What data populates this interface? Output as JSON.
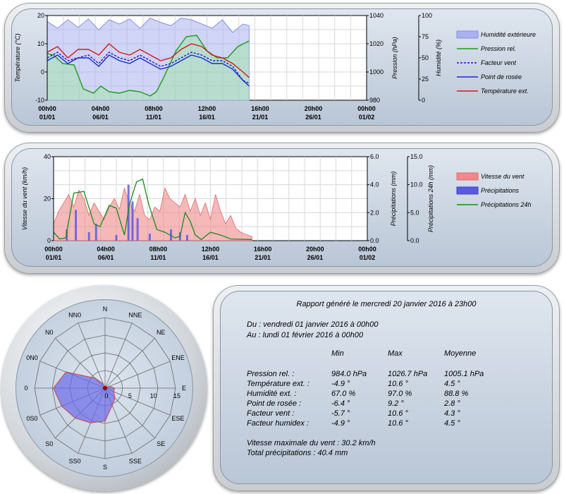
{
  "colors": {
    "humidity": "#aab0f0",
    "pressure": "#1a9a1a",
    "windchill": "#1515d0",
    "dewpoint": "#1a2ad0",
    "temperature": "#d01a1a",
    "windspeed": "#f08a8a",
    "rain": "#5a5ae0",
    "rain24": "#1a8a1a"
  },
  "x_ticks": [
    {
      "time": "00h00",
      "date": "01/01"
    },
    {
      "time": "04h00",
      "date": "06/01"
    },
    {
      "time": "08h00",
      "date": "11/01"
    },
    {
      "time": "12h00",
      "date": "16/01"
    },
    {
      "time": "16h00",
      "date": "21/01"
    },
    {
      "time": "20h00",
      "date": "26/01"
    },
    {
      "time": "00h00",
      "date": "01/02"
    }
  ],
  "chart_data": [
    {
      "type": "line",
      "x_range": [
        "2016-01-01",
        "2016-02-01"
      ],
      "axes": {
        "temperature": {
          "label": "Température (°C)",
          "ylim": [
            -10,
            20
          ],
          "ticks": [
            "20",
            "10",
            "0",
            "-10"
          ]
        },
        "pressure": {
          "label": "Pression (hPa)",
          "ylim": [
            980,
            1040
          ],
          "ticks": [
            "1040",
            "1020",
            "1000",
            "980"
          ]
        },
        "humidity": {
          "label": "Humidité (%)",
          "ylim": [
            0,
            100
          ],
          "ticks": [
            "100",
            "75",
            "50",
            "25",
            "0"
          ]
        }
      },
      "legend": [
        "Humidité extérieure",
        "Pression rel.",
        "Facteur vent",
        "Point de rosée",
        "Température ext."
      ],
      "series": [
        {
          "name": "Humidité extérieure",
          "axis": "humidity",
          "x": [
            1,
            2,
            3,
            4,
            5,
            6,
            7,
            8,
            9,
            10,
            11,
            12,
            13,
            14,
            15,
            16,
            17,
            18,
            19,
            20,
            20.6
          ],
          "values": [
            93,
            85,
            95,
            86,
            96,
            83,
            95,
            90,
            96,
            85,
            97,
            92,
            88,
            97,
            95,
            90,
            85,
            95,
            80,
            90,
            88
          ]
        },
        {
          "name": "Pression rel.",
          "axis": "pressure",
          "x": [
            1,
            1.6,
            2.5,
            3.6,
            4.5,
            5.5,
            6.2,
            7,
            8,
            9,
            10,
            11,
            11.6,
            12.3,
            13.5,
            14.5,
            15.5,
            16.5,
            17.5,
            18.5,
            19.5,
            20.6
          ],
          "values": [
            1013,
            1012,
            1006,
            1005,
            988,
            985,
            990,
            986,
            985,
            987,
            986,
            983,
            986,
            996,
            1015,
            1025,
            1026,
            1015,
            1010,
            1010,
            1018,
            1022
          ]
        },
        {
          "name": "Facteur vent",
          "axis": "temperature",
          "x": [
            1,
            2,
            3,
            4,
            5,
            6,
            7,
            8,
            9,
            10,
            11,
            12,
            13,
            14,
            15,
            16,
            17,
            18,
            19,
            20,
            20.6
          ],
          "values": [
            5,
            7,
            4,
            5,
            6,
            3,
            7,
            5,
            4,
            6,
            4,
            2,
            3,
            5,
            7,
            6,
            4,
            4,
            2,
            -3,
            -4
          ]
        },
        {
          "name": "Point de rosée",
          "axis": "temperature",
          "x": [
            1,
            2,
            3,
            4,
            5,
            6,
            7,
            8,
            9,
            10,
            11,
            12,
            13,
            14,
            15,
            16,
            17,
            18,
            19,
            20,
            20.6
          ],
          "values": [
            4,
            6,
            3,
            5,
            5,
            2,
            6,
            4,
            3,
            5,
            3,
            1,
            2,
            4,
            6,
            5,
            3,
            3,
            1,
            -3,
            -5
          ]
        },
        {
          "name": "Température ext.",
          "axis": "temperature",
          "x": [
            1,
            2,
            3,
            4,
            5,
            6,
            7,
            8,
            9,
            10,
            11,
            12,
            13,
            14,
            15,
            16,
            17,
            18,
            19,
            20,
            20.6
          ],
          "values": [
            7,
            9,
            5,
            8,
            8,
            6,
            10,
            7,
            6,
            8,
            6,
            4,
            5,
            8,
            10,
            9,
            6,
            5,
            3,
            0,
            -2
          ]
        }
      ]
    },
    {
      "type": "area",
      "x_range": [
        "2016-01-01",
        "2016-02-01"
      ],
      "axes": {
        "wind": {
          "label": "Vitesse du vent (km/h)",
          "ylim": [
            0,
            40
          ],
          "ticks": [
            "40",
            "20",
            "0"
          ]
        },
        "rain": {
          "label": "Précipitations (mm)",
          "ylim": [
            0,
            6
          ],
          "ticks": [
            "6.0",
            "4.0",
            "2.0",
            "0.0"
          ]
        },
        "rain24": {
          "label": "Précipitations 24h (mm)",
          "ylim": [
            0,
            15
          ],
          "ticks": [
            "15.0",
            "10.0",
            "5.0",
            "0.0"
          ]
        }
      },
      "legend": [
        "Vitesse du vent",
        "Précipitations",
        "Précipitations 24h"
      ],
      "series": [
        {
          "name": "Vitesse du vent",
          "axis": "wind",
          "x": [
            1,
            1.5,
            2,
            2.5,
            3,
            3.5,
            4,
            4.5,
            5,
            5.5,
            6,
            6.5,
            7,
            7.5,
            8,
            8.5,
            9,
            9.5,
            10,
            10.5,
            11,
            11.5,
            12,
            12.5,
            13,
            13.5,
            14,
            14.5,
            15,
            15.5,
            16,
            16.5,
            17,
            17.5,
            18,
            18.5,
            19,
            19.5,
            20,
            20.6
          ],
          "values": [
            8,
            14,
            18,
            22,
            16,
            24,
            20,
            12,
            18,
            14,
            10,
            16,
            20,
            15,
            25,
            18,
            14,
            22,
            12,
            10,
            16,
            14,
            25,
            20,
            18,
            16,
            22,
            14,
            20,
            12,
            18,
            10,
            22,
            14,
            8,
            12,
            6,
            4,
            3,
            2
          ]
        },
        {
          "name": "Précipitations",
          "axis": "rain",
          "x": [
            2.3,
            3.2,
            4.5,
            5.2,
            7.2,
            8.4,
            8.8,
            9.3,
            10.5,
            12.6,
            13.5,
            14.2
          ],
          "values": [
            0.8,
            2.2,
            0.6,
            1.2,
            0.4,
            4.0,
            2.8,
            1.6,
            0.5,
            0.8,
            0.6,
            0.4
          ]
        },
        {
          "name": "Précipitations 24h",
          "axis": "rain24",
          "x": [
            1,
            1.6,
            2.2,
            3,
            4,
            5,
            5.6,
            6.5,
            7.2,
            8,
            8.5,
            9.2,
            9.8,
            10.4,
            11.2,
            12,
            13,
            13.5,
            14,
            14.5,
            15,
            15.6,
            16.5,
            17.5,
            18.5,
            20.6
          ],
          "values": [
            1.5,
            0.3,
            0.5,
            8.5,
            8.8,
            3.0,
            2.5,
            6.3,
            5.8,
            1.0,
            6.5,
            10.5,
            11.0,
            6.5,
            2.0,
            1.5,
            0.5,
            0.8,
            5.0,
            3.5,
            1.0,
            0.2,
            1.5,
            1.0,
            0.3,
            0.2
          ]
        }
      ]
    },
    {
      "type": "radar",
      "directions": [
        "N",
        "NNE",
        "NE",
        "ENE",
        "E",
        "ESE",
        "SE",
        "SSE",
        "S",
        "SS0",
        "S0",
        "0S0",
        "0",
        "0N0",
        "N0",
        "NN0"
      ],
      "radial_ticks": [
        "0",
        "5",
        "10",
        "15"
      ],
      "rmax": 15,
      "values": [
        0,
        0,
        0,
        1,
        2,
        2,
        3,
        4,
        7,
        8,
        9,
        10,
        11,
        9,
        3,
        1
      ]
    }
  ],
  "report": {
    "title": "Rapport généré le mercredi 20 janvier 2016 à 23h00",
    "from": "Du : vendredi 01 janvier 2016 à 00h00",
    "to": "Au : lundi 01 février 2016 à 00h00",
    "headers": {
      "min": "Min",
      "max": "Max",
      "avg": "Moyenne"
    },
    "rows": [
      {
        "label": "Pression rel. :",
        "min": "984.0 hPa",
        "max": "1026.7 hPa",
        "avg": "1005.1 hPa"
      },
      {
        "label": "Température ext. :",
        "min": "-4.9 °",
        "max": "10.6 °",
        "avg": "4.5 °"
      },
      {
        "label": "Humidité ext. :",
        "min": "67.0 %",
        "max": "97.0 %",
        "avg": "88.8 %"
      },
      {
        "label": "Point de rosée :",
        "min": "-6.4 °",
        "max": "9.2 °",
        "avg": "2.8 °"
      },
      {
        "label": "Facteur vent :",
        "min": "-5.7 °",
        "max": "10.6 °",
        "avg": "4.3 °"
      },
      {
        "label": "Facteur humidex :",
        "min": "-4.9 °",
        "max": "10.6 °",
        "avg": "4.5 °"
      }
    ],
    "wind_max": "Vitesse maximale du vent : 30.2 km/h",
    "total_rain": "Total précipitations : 40.4 mm"
  }
}
